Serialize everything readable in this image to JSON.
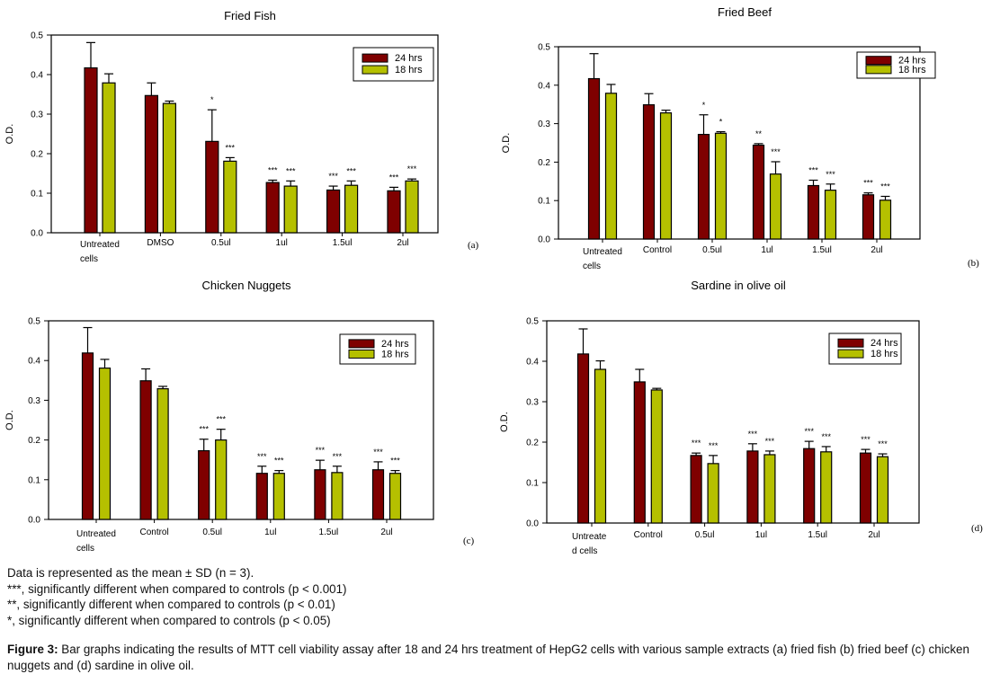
{
  "colors": {
    "series_24": "#7f0000",
    "series_18": "#b5c000",
    "axis": "#000000"
  },
  "chart_data": [
    {
      "id": "a",
      "type": "bar",
      "title": "Fried Fish",
      "panel_tag": "(a)",
      "xlabel": "",
      "ylabel": "O.D.",
      "ylim": [
        0,
        0.5
      ],
      "yticks": [
        "0.0",
        "0.1",
        "0.2",
        "0.3",
        "0.4",
        "0.5"
      ],
      "grid": false,
      "legend": "top-right",
      "categories": [
        [
          "Untreated",
          "cells"
        ],
        [
          "DMSO"
        ],
        [
          "0.5ul"
        ],
        [
          "1ul"
        ],
        [
          "1.5ul"
        ],
        [
          "2ul"
        ]
      ],
      "series": [
        {
          "name": "24 hrs",
          "values": [
            0.417,
            0.347,
            0.231,
            0.127,
            0.108,
            0.106
          ],
          "error_upper": [
            0.481,
            0.379,
            0.311,
            0.133,
            0.118,
            0.115
          ],
          "significance": [
            "",
            "",
            "*",
            "***",
            "***",
            "***"
          ]
        },
        {
          "name": "18 hrs",
          "values": [
            0.379,
            0.327,
            0.181,
            0.118,
            0.12,
            0.131
          ],
          "error_upper": [
            0.402,
            0.333,
            0.19,
            0.131,
            0.131,
            0.136
          ],
          "significance": [
            "",
            "",
            "***",
            "***",
            "***",
            "***"
          ]
        }
      ]
    },
    {
      "id": "b",
      "type": "bar",
      "title": "Fried Beef",
      "panel_tag": "(b)",
      "xlabel": "",
      "ylabel": "O.D.",
      "ylim": [
        0,
        0.5
      ],
      "yticks": [
        "0.0",
        "0.1",
        "0.2",
        "0.3",
        "0.4",
        "0.5"
      ],
      "grid": false,
      "legend": "top-right",
      "categories": [
        [
          "Untreated",
          "cells"
        ],
        [
          "Control"
        ],
        [
          "0.5ul"
        ],
        [
          "1ul"
        ],
        [
          "1.5ul"
        ],
        [
          "2ul"
        ]
      ],
      "series": [
        {
          "name": "24 hrs",
          "values": [
            0.417,
            0.349,
            0.272,
            0.244,
            0.139,
            0.115
          ],
          "error_upper": [
            0.482,
            0.378,
            0.323,
            0.248,
            0.153,
            0.12
          ],
          "significance": [
            "",
            "",
            "*",
            "**",
            "***",
            "***"
          ]
        },
        {
          "name": "18 hrs",
          "values": [
            0.379,
            0.328,
            0.275,
            0.169,
            0.127,
            0.101
          ],
          "error_upper": [
            0.402,
            0.335,
            0.279,
            0.201,
            0.143,
            0.111
          ],
          "significance": [
            "",
            "",
            "*",
            "***",
            "***",
            "***"
          ]
        }
      ]
    },
    {
      "id": "c",
      "type": "bar",
      "title": "Chicken Nuggets",
      "panel_tag": "(c)",
      "xlabel": "",
      "ylabel": "O.D.",
      "ylim": [
        0,
        0.5
      ],
      "yticks": [
        "0.0",
        "0.1",
        "0.2",
        "0.3",
        "0.4",
        "0.5"
      ],
      "grid": false,
      "legend": "top-right",
      "categories": [
        [
          "Untreated",
          "cells"
        ],
        [
          "Control"
        ],
        [
          "0.5ul"
        ],
        [
          "1ul"
        ],
        [
          "1.5ul"
        ],
        [
          "2ul"
        ]
      ],
      "series": [
        {
          "name": "24 hrs",
          "values": [
            0.419,
            0.349,
            0.173,
            0.116,
            0.125,
            0.125
          ],
          "error_upper": [
            0.483,
            0.379,
            0.202,
            0.134,
            0.149,
            0.145
          ],
          "significance": [
            "",
            "",
            "***",
            "***",
            "***",
            "***"
          ]
        },
        {
          "name": "18 hrs",
          "values": [
            0.381,
            0.329,
            0.2,
            0.116,
            0.118,
            0.116
          ],
          "error_upper": [
            0.403,
            0.335,
            0.227,
            0.123,
            0.134,
            0.123
          ],
          "significance": [
            "",
            "",
            "***",
            "***",
            "***",
            "***"
          ]
        }
      ]
    },
    {
      "id": "d",
      "type": "bar",
      "title": "Sardine in olive oil",
      "panel_tag": "(d)",
      "xlabel": "",
      "ylabel": "O.D.",
      "ylim": [
        0,
        0.5
      ],
      "yticks": [
        "0.0",
        "0.1",
        "0.2",
        "0.3",
        "0.4",
        "0.5"
      ],
      "grid": false,
      "legend": "top-right",
      "categories": [
        [
          "Untreate",
          "d cells"
        ],
        [
          "Control"
        ],
        [
          "0.5ul"
        ],
        [
          "1ul"
        ],
        [
          "1.5ul"
        ],
        [
          "2ul"
        ]
      ],
      "series": [
        {
          "name": "24 hrs",
          "values": [
            0.418,
            0.349,
            0.167,
            0.178,
            0.184,
            0.173
          ],
          "error_upper": [
            0.48,
            0.38,
            0.173,
            0.196,
            0.202,
            0.182
          ],
          "significance": [
            "",
            "",
            "***",
            "***",
            "***",
            "***"
          ]
        },
        {
          "name": "18 hrs",
          "values": [
            0.38,
            0.329,
            0.147,
            0.169,
            0.176,
            0.164
          ],
          "error_upper": [
            0.401,
            0.333,
            0.167,
            0.178,
            0.189,
            0.171
          ],
          "significance": [
            "",
            "",
            "***",
            "***",
            "***",
            "***"
          ]
        }
      ]
    }
  ],
  "notes": {
    "line1": "Data is represented as the mean ± SD (n = 3).",
    "line2": "***, significantly different when compared to controls (p < 0.001)",
    "line3": "**, significantly different when compared to controls (p < 0.01)",
    "line4": "*, significantly different when compared to controls (p < 0.05)"
  },
  "caption": {
    "label": "Figure 3:",
    "text": " Bar graphs indicating the results of MTT cell viability assay after 18 and 24 hrs treatment of HepG2 cells with various sample extracts (a) fried fish (b) fried beef (c) chicken nuggets and (d) sardine in olive oil."
  }
}
